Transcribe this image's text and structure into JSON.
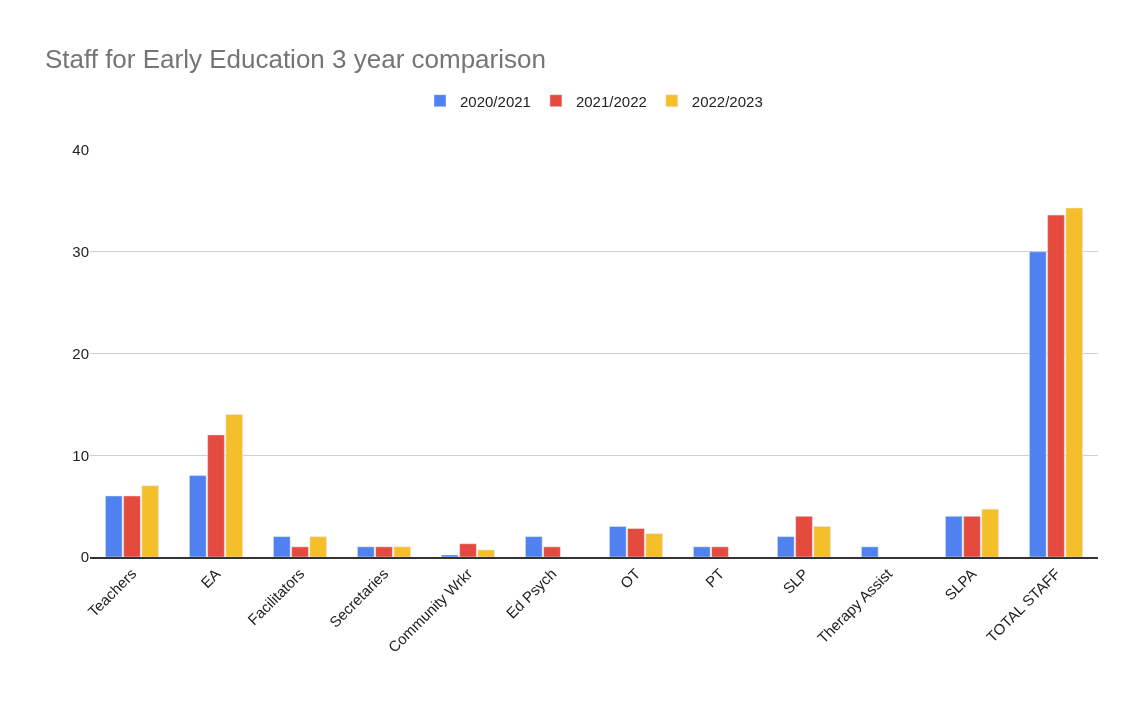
{
  "chart_data": {
    "type": "bar",
    "title": "Staff for Early Education 3 year comparison",
    "categories": [
      "Teachers",
      "EA",
      "Facilitators",
      "Secretaries",
      "Community Wrkr",
      "Ed Psych",
      "OT",
      "PT",
      "SLP",
      "Therapy Assist",
      "SLPA",
      "TOTAL STAFF"
    ],
    "series": [
      {
        "name": "2020/2021",
        "color": "#4f81f0",
        "values": [
          6,
          8,
          2,
          1,
          0.2,
          2,
          3,
          1,
          2,
          1,
          4,
          30
        ]
      },
      {
        "name": "2021/2022",
        "color": "#e44b3e",
        "values": [
          6,
          12,
          1,
          1,
          1.3,
          1,
          2.8,
          1,
          4,
          null,
          4,
          33.6
        ]
      },
      {
        "name": "2022/2023",
        "color": "#f4bf2a",
        "values": [
          7,
          14,
          2,
          1,
          0.7,
          null,
          2.3,
          null,
          3,
          null,
          4.7,
          34.3
        ]
      }
    ],
    "ylim": [
      0,
      40
    ],
    "yticks": [
      0,
      10,
      20,
      30,
      40
    ],
    "grid": "y",
    "legend": "top"
  }
}
